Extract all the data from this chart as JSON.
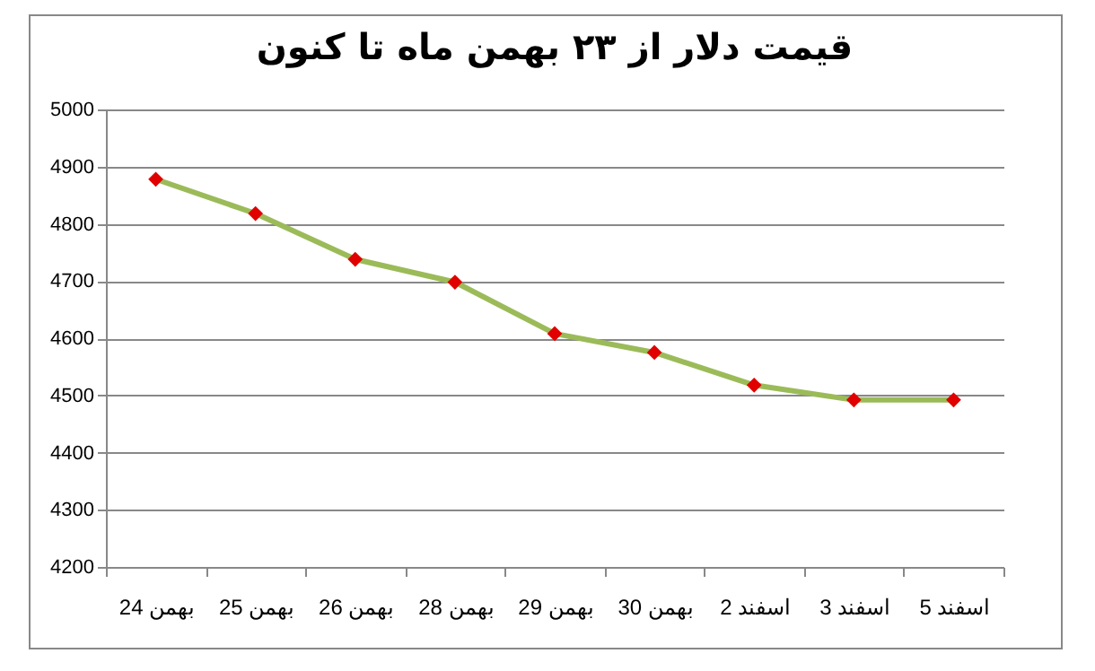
{
  "chart_data": {
    "type": "line",
    "title": "قیمت دلار از ۲۳ بهمن ماه تا کنون",
    "categories": [
      "بهمن 24",
      "بهمن 25",
      "بهمن 26",
      "بهمن 28",
      "بهمن 29",
      "بهمن 30",
      "اسفند 2",
      "اسفند 3",
      "اسفند 5"
    ],
    "series": [
      {
        "color": "#9bbb59",
        "colors": [
          "#e00000",
          "#e00000",
          "#e00000",
          "#e00000",
          "#e00000",
          "#e00000",
          "#e00000",
          "#e00000",
          "#e00000"
        ],
        "values": [
          4878,
          4818,
          4738,
          4698,
          4608,
          4575,
          4518,
          4492,
          4492
        ]
      }
    ],
    "ylim": [
      4200,
      5000
    ],
    "yticks": [
      4200,
      4300,
      4400,
      4500,
      4600,
      4700,
      4800,
      4900,
      5000
    ],
    "grid": "y",
    "marker": "diamond",
    "line_style": "solid"
  }
}
